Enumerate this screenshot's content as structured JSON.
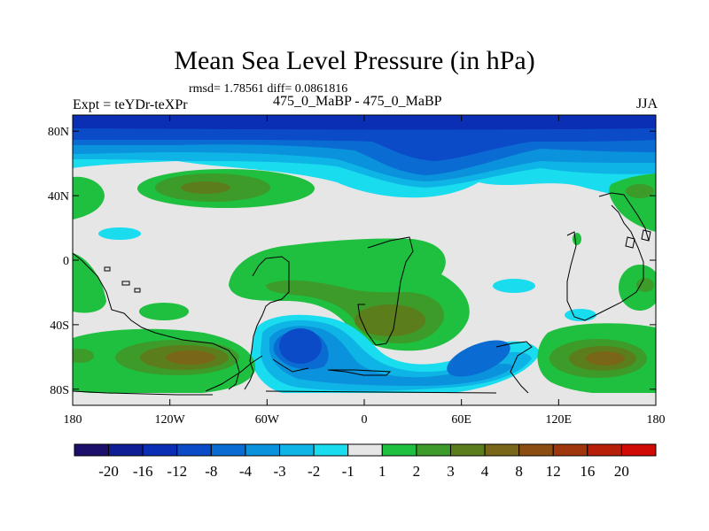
{
  "chart_data": {
    "type": "heatmap",
    "title": "Mean Sea Level Pressure (in hPa)",
    "stats": "rmsd= 1.78561 diff= 0.0861816",
    "left_label": "Expt = teYDr-teXPr",
    "experiment_names": "475_0_MaBP - 475_0_MaBP",
    "season": "JJA",
    "xlim": [
      -180,
      180
    ],
    "ylim": [
      -90,
      90
    ],
    "x_ticks": [
      {
        "value": -180,
        "label": "180"
      },
      {
        "value": -120,
        "label": "120W"
      },
      {
        "value": -60,
        "label": "60W"
      },
      {
        "value": 0,
        "label": "0"
      },
      {
        "value": 60,
        "label": "60E"
      },
      {
        "value": 120,
        "label": "120E"
      },
      {
        "value": 180,
        "label": "180"
      }
    ],
    "y_ticks": [
      {
        "value": 80,
        "label": "80N"
      },
      {
        "value": 40,
        "label": "40N"
      },
      {
        "value": 0,
        "label": "0"
      },
      {
        "value": -40,
        "label": "40S"
      },
      {
        "value": -80,
        "label": "80S"
      }
    ],
    "colorbar": {
      "levels": [
        "-20",
        "-16",
        "-12",
        "-8",
        "-4",
        "-3",
        "-2",
        "-1",
        "1",
        "2",
        "3",
        "4",
        "8",
        "12",
        "16",
        "20"
      ],
      "colors": [
        "#1b0f6b",
        "#0f1e94",
        "#0a2fb4",
        "#0b4bc8",
        "#0a6cd2",
        "#0b92dc",
        "#0fb4e6",
        "#19dcee",
        "#e6e6e6",
        "#1fbf3f",
        "#3d9b2a",
        "#5b7d1c",
        "#7a6618",
        "#8b4e10",
        "#a0360c",
        "#b81f08",
        "#d00a05"
      ]
    },
    "features": [
      {
        "name": "arctic-low",
        "value": -8,
        "lon": [
          -180,
          180
        ],
        "lat": [
          72,
          90
        ]
      },
      {
        "name": "north-atlantic-low",
        "value": -8,
        "center": [
          45,
          62
        ]
      },
      {
        "name": "north-pacific-high",
        "value": 4,
        "center": [
          -105,
          46
        ]
      },
      {
        "name": "south-atlantic-low",
        "value": -8,
        "center": [
          -37,
          -50
        ]
      },
      {
        "name": "south-indian-low",
        "value": -4,
        "center": [
          72,
          -58
        ]
      },
      {
        "name": "south-pacific-high",
        "value": 8,
        "center": [
          -105,
          -58
        ]
      },
      {
        "name": "south-africa-high",
        "value": 4,
        "center": [
          20,
          -43
        ]
      },
      {
        "name": "south-australia-high",
        "value": 8,
        "center": [
          145,
          -58
        ]
      }
    ]
  }
}
